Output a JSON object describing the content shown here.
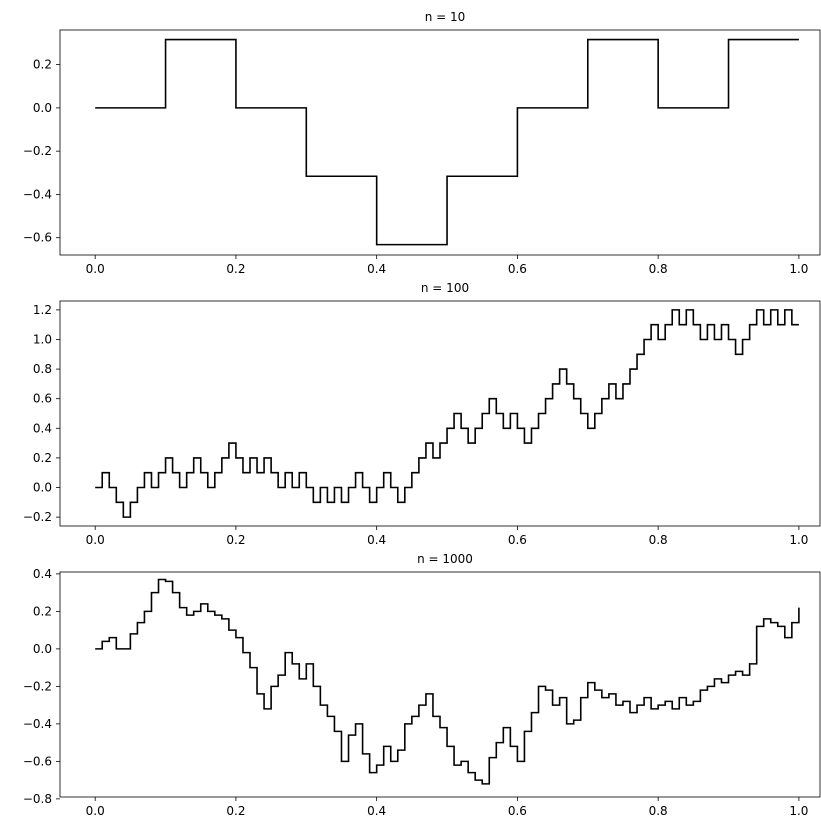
{
  "chart_data": [
    {
      "type": "line",
      "step": "post",
      "title": "n = 10",
      "xlim": [
        -0.05,
        1.03
      ],
      "ylim": [
        -0.68,
        0.36
      ],
      "xticks": [
        0.0,
        0.2,
        0.4,
        0.6,
        0.8,
        1.0
      ],
      "xtick_labels": [
        "0.0",
        "0.2",
        "0.4",
        "0.6",
        "0.8",
        "1.0"
      ],
      "yticks": [
        0.2,
        0.0,
        -0.2,
        -0.4,
        -0.6
      ],
      "ytick_labels": [
        "0.2",
        "0.0",
        "−0.2",
        "−0.4",
        "−0.6"
      ],
      "grid": false,
      "color": "#000000",
      "x": [
        0.0,
        0.1,
        0.2,
        0.3,
        0.4,
        0.5,
        0.6,
        0.7,
        0.8,
        0.9,
        1.0
      ],
      "y": [
        0.0,
        0.316,
        0.0,
        -0.316,
        -0.632,
        -0.316,
        0.0,
        0.316,
        0.0,
        0.316,
        0.316
      ]
    },
    {
      "type": "line",
      "step": "post",
      "title": "n = 100",
      "xlim": [
        -0.05,
        1.03
      ],
      "ylim": [
        -0.26,
        1.26
      ],
      "xticks": [
        0.0,
        0.2,
        0.4,
        0.6,
        0.8,
        1.0
      ],
      "xtick_labels": [
        "0.0",
        "0.2",
        "0.4",
        "0.6",
        "0.8",
        "1.0"
      ],
      "yticks": [
        1.2,
        1.0,
        0.8,
        0.6,
        0.4,
        0.2,
        0.0,
        -0.2
      ],
      "ytick_labels": [
        "1.2",
        "1.0",
        "0.8",
        "0.6",
        "0.4",
        "0.2",
        "0.0",
        "−0.2"
      ],
      "grid": false,
      "color": "#000000",
      "x": [
        0.0,
        0.01,
        0.02,
        0.03,
        0.04,
        0.05,
        0.06,
        0.07,
        0.08,
        0.09,
        0.1,
        0.11,
        0.12,
        0.13,
        0.14,
        0.15,
        0.16,
        0.17,
        0.18,
        0.19,
        0.2,
        0.21,
        0.22,
        0.23,
        0.24,
        0.25,
        0.26,
        0.27,
        0.28,
        0.29,
        0.3,
        0.31,
        0.32,
        0.33,
        0.34,
        0.35,
        0.36,
        0.37,
        0.38,
        0.39,
        0.4,
        0.41,
        0.42,
        0.43,
        0.44,
        0.45,
        0.46,
        0.47,
        0.48,
        0.49,
        0.5,
        0.51,
        0.52,
        0.53,
        0.54,
        0.55,
        0.56,
        0.57,
        0.58,
        0.59,
        0.6,
        0.61,
        0.62,
        0.63,
        0.64,
        0.65,
        0.66,
        0.67,
        0.68,
        0.69,
        0.7,
        0.71,
        0.72,
        0.73,
        0.74,
        0.75,
        0.76,
        0.77,
        0.78,
        0.79,
        0.8,
        0.81,
        0.82,
        0.83,
        0.84,
        0.85,
        0.86,
        0.87,
        0.88,
        0.89,
        0.9,
        0.91,
        0.92,
        0.93,
        0.94,
        0.95,
        0.96,
        0.97,
        0.98,
        0.99,
        1.0
      ],
      "y": [
        0.0,
        0.1,
        0.0,
        -0.1,
        -0.2,
        -0.1,
        0.0,
        0.1,
        0.0,
        0.1,
        0.2,
        0.1,
        0.0,
        0.1,
        0.2,
        0.1,
        0.0,
        0.1,
        0.2,
        0.3,
        0.2,
        0.1,
        0.2,
        0.1,
        0.2,
        0.1,
        0.0,
        0.1,
        0.0,
        0.1,
        0.0,
        -0.1,
        0.0,
        -0.1,
        0.0,
        -0.1,
        0.0,
        0.1,
        0.0,
        -0.1,
        0.0,
        0.1,
        0.0,
        -0.1,
        0.0,
        0.1,
        0.2,
        0.3,
        0.2,
        0.3,
        0.4,
        0.5,
        0.4,
        0.3,
        0.4,
        0.5,
        0.6,
        0.5,
        0.4,
        0.5,
        0.4,
        0.3,
        0.4,
        0.5,
        0.6,
        0.7,
        0.8,
        0.7,
        0.6,
        0.5,
        0.4,
        0.5,
        0.6,
        0.7,
        0.6,
        0.7,
        0.8,
        0.9,
        1.0,
        1.1,
        1.0,
        1.1,
        1.2,
        1.1,
        1.2,
        1.1,
        1.0,
        1.1,
        1.0,
        1.1,
        1.0,
        0.9,
        1.0,
        1.1,
        1.2,
        1.1,
        1.2,
        1.1,
        1.2,
        1.1,
        1.1
      ]
    },
    {
      "type": "line",
      "step": "post",
      "title": "n = 1000",
      "xlim": [
        -0.05,
        1.03
      ],
      "ylim": [
        -0.79,
        0.41
      ],
      "xticks": [
        0.0,
        0.2,
        0.4,
        0.6,
        0.8,
        1.0
      ],
      "xtick_labels": [
        "0.0",
        "0.2",
        "0.4",
        "0.6",
        "0.8",
        "1.0"
      ],
      "yticks": [
        0.4,
        0.2,
        0.0,
        -0.2,
        -0.4,
        -0.6,
        -0.8
      ],
      "ytick_labels": [
        "0.4",
        "0.2",
        "0.0",
        "−0.2",
        "−0.4",
        "−0.6",
        "−0.8"
      ],
      "grid": false,
      "color": "#000000",
      "x": [
        0.0,
        0.01,
        0.02,
        0.03,
        0.04,
        0.05,
        0.06,
        0.07,
        0.08,
        0.09,
        0.1,
        0.11,
        0.12,
        0.13,
        0.14,
        0.15,
        0.16,
        0.17,
        0.18,
        0.19,
        0.2,
        0.21,
        0.22,
        0.23,
        0.24,
        0.25,
        0.26,
        0.27,
        0.28,
        0.29,
        0.3,
        0.31,
        0.32,
        0.33,
        0.34,
        0.35,
        0.36,
        0.37,
        0.38,
        0.39,
        0.4,
        0.41,
        0.42,
        0.43,
        0.44,
        0.45,
        0.46,
        0.47,
        0.48,
        0.49,
        0.5,
        0.51,
        0.52,
        0.53,
        0.54,
        0.55,
        0.56,
        0.57,
        0.58,
        0.59,
        0.6,
        0.61,
        0.62,
        0.63,
        0.64,
        0.65,
        0.66,
        0.67,
        0.68,
        0.69,
        0.7,
        0.71,
        0.72,
        0.73,
        0.74,
        0.75,
        0.76,
        0.77,
        0.78,
        0.79,
        0.8,
        0.81,
        0.82,
        0.83,
        0.84,
        0.85,
        0.86,
        0.87,
        0.88,
        0.89,
        0.9,
        0.91,
        0.92,
        0.93,
        0.94,
        0.95,
        0.96,
        0.97,
        0.98,
        0.99,
        1.0
      ],
      "y": [
        0.0,
        0.04,
        0.06,
        0.0,
        0.0,
        0.08,
        0.14,
        0.2,
        0.3,
        0.37,
        0.36,
        0.3,
        0.22,
        0.18,
        0.2,
        0.24,
        0.2,
        0.18,
        0.16,
        0.1,
        0.06,
        -0.02,
        -0.1,
        -0.24,
        -0.32,
        -0.2,
        -0.14,
        -0.02,
        -0.08,
        -0.16,
        -0.08,
        -0.2,
        -0.3,
        -0.36,
        -0.44,
        -0.6,
        -0.46,
        -0.4,
        -0.56,
        -0.66,
        -0.62,
        -0.52,
        -0.6,
        -0.54,
        -0.4,
        -0.36,
        -0.3,
        -0.24,
        -0.36,
        -0.42,
        -0.52,
        -0.62,
        -0.6,
        -0.66,
        -0.7,
        -0.72,
        -0.58,
        -0.5,
        -0.42,
        -0.52,
        -0.6,
        -0.44,
        -0.34,
        -0.2,
        -0.22,
        -0.3,
        -0.26,
        -0.4,
        -0.38,
        -0.26,
        -0.18,
        -0.22,
        -0.26,
        -0.24,
        -0.3,
        -0.28,
        -0.34,
        -0.3,
        -0.26,
        -0.32,
        -0.3,
        -0.28,
        -0.32,
        -0.26,
        -0.3,
        -0.28,
        -0.22,
        -0.2,
        -0.16,
        -0.18,
        -0.14,
        -0.12,
        -0.14,
        -0.08,
        0.12,
        0.16,
        0.14,
        0.12,
        0.06,
        0.14,
        0.22
      ]
    }
  ]
}
